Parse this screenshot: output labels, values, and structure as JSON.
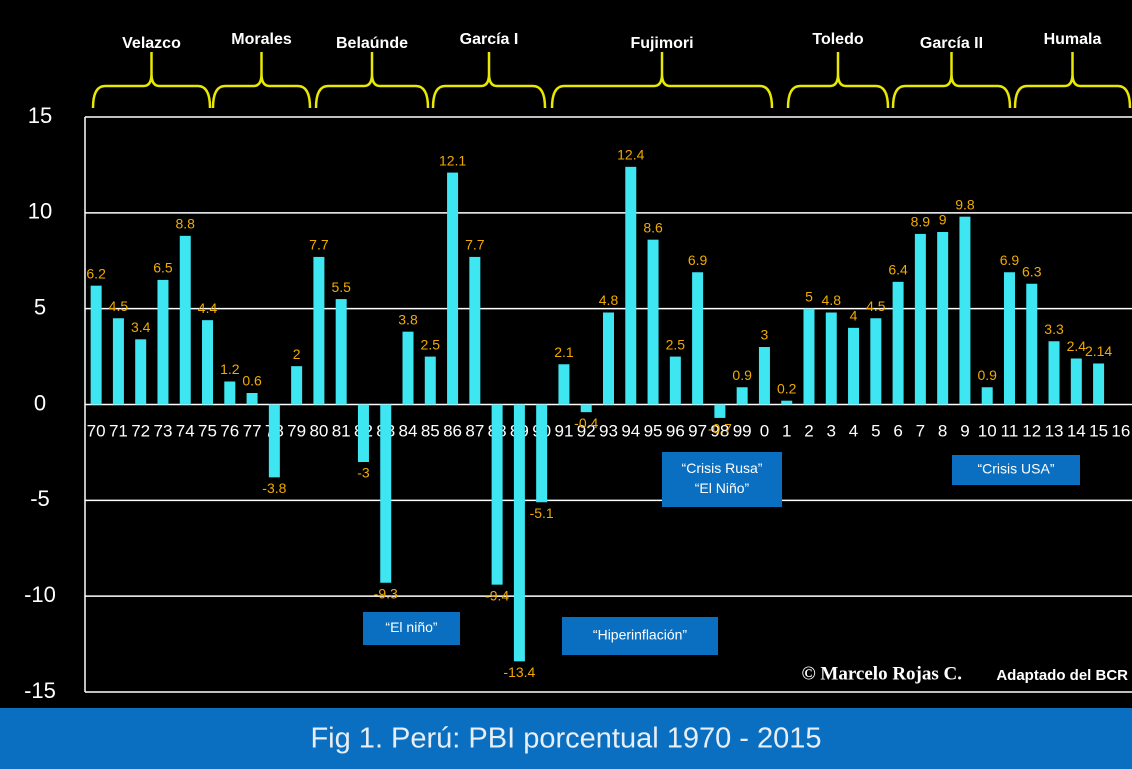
{
  "chart_data": {
    "type": "bar",
    "title": "Fig 1. Perú: PBI porcentual 1970 - 2015",
    "credit": [
      "© Marcelo Rojas C.",
      "Adaptado del BCR"
    ],
    "periods": [
      "Velazco",
      "Morales",
      "Belaúnde",
      "García I",
      "Fujimori",
      "Toledo",
      "García II",
      "Humala"
    ],
    "annotations": [
      [
        "“El niño”"
      ],
      [
        "“Hiperinflación”"
      ],
      [
        "“Crisis Rusa”",
        "“El Niño”"
      ],
      [
        "“Crisis USA”"
      ]
    ],
    "categories": [
      "70",
      "71",
      "72",
      "73",
      "74",
      "75",
      "76",
      "77",
      "78",
      "79",
      "80",
      "81",
      "82",
      "83",
      "84",
      "85",
      "86",
      "87",
      "88",
      "89",
      "90",
      "91",
      "92",
      "93",
      "94",
      "95",
      "96",
      "97",
      "98",
      "99",
      "0",
      "1",
      "2",
      "3",
      "4",
      "5",
      "6",
      "7",
      "8",
      "9",
      "10",
      "11",
      "12",
      "13",
      "14",
      "15",
      "16"
    ],
    "values": [
      6.2,
      4.5,
      3.4,
      6.5,
      8.8,
      4.4,
      1.2,
      0.6,
      -3.8,
      2,
      7.7,
      5.5,
      -3,
      -9.3,
      3.8,
      2.5,
      12.1,
      7.7,
      -9.4,
      -13.4,
      -5.1,
      2.1,
      -0.4,
      4.8,
      12.4,
      8.6,
      2.5,
      6.9,
      -0.7,
      0.9,
      3,
      0.2,
      5,
      4.8,
      4,
      4.5,
      6.4,
      8.9,
      9,
      9.8,
      0.9,
      6.9,
      6.3,
      3.3,
      2.4,
      2.14,
      null
    ],
    "color": "#3ee6f2",
    "label_color": "#f0aa00",
    "ylim": [
      -15,
      15
    ],
    "yticks": [
      -15,
      -10,
      -5,
      0,
      5,
      10,
      15
    ],
    "grid": true
  }
}
